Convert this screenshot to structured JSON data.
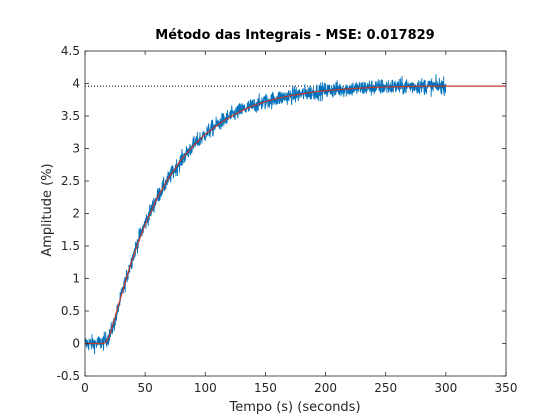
{
  "chart_data": {
    "type": "line",
    "title": "Método das Integrais - MSE: 0.017829",
    "xlabel": "Tempo (s) (seconds)",
    "ylabel": "Amplitude (%)",
    "xlim": [
      0,
      350
    ],
    "ylim": [
      -0.5,
      4.5
    ],
    "xticks": [
      "0",
      "50",
      "100",
      "150",
      "200",
      "250",
      "300",
      "350"
    ],
    "yticks": [
      "-0.5",
      "0",
      "0.5",
      "1",
      "1.5",
      "2",
      "2.5",
      "3",
      "3.5",
      "4",
      "4.5"
    ],
    "grid": false,
    "reference_line": {
      "y": 3.96,
      "style": "dotted",
      "color": "#000000"
    },
    "series": [
      {
        "style": "noisy-line",
        "color": "#0072BD",
        "x": [
          0,
          10,
          15,
          20,
          25,
          30,
          35,
          40,
          45,
          50,
          60,
          70,
          80,
          90,
          100,
          110,
          120,
          130,
          140,
          150,
          160,
          170,
          180,
          190,
          200,
          210,
          220,
          230,
          240,
          250,
          260,
          270,
          280,
          290,
          300
        ],
        "y": [
          0.0,
          0.0,
          0.02,
          0.1,
          0.35,
          0.72,
          1.05,
          1.35,
          1.62,
          1.85,
          2.25,
          2.55,
          2.82,
          3.05,
          3.22,
          3.37,
          3.49,
          3.59,
          3.66,
          3.72,
          3.77,
          3.81,
          3.84,
          3.87,
          3.89,
          3.91,
          3.92,
          3.93,
          3.94,
          3.95,
          3.95,
          3.96,
          3.96,
          3.96,
          3.97
        ],
        "noise_amplitude": 0.12
      },
      {
        "style": "line",
        "color": "#C0392B",
        "x": [
          0,
          15,
          18,
          20,
          22,
          25,
          30,
          35,
          40,
          45,
          50,
          60,
          70,
          80,
          90,
          100,
          110,
          120,
          130,
          140,
          150,
          160,
          170,
          180,
          190,
          200,
          220,
          240,
          260,
          280,
          300,
          320,
          340,
          350
        ],
        "y": [
          0.0,
          0.0,
          0.03,
          0.1,
          0.22,
          0.4,
          0.73,
          1.04,
          1.33,
          1.59,
          1.83,
          2.24,
          2.56,
          2.83,
          3.04,
          3.22,
          3.36,
          3.48,
          3.58,
          3.66,
          3.72,
          3.77,
          3.81,
          3.84,
          3.87,
          3.89,
          3.92,
          3.94,
          3.95,
          3.96,
          3.96,
          3.96,
          3.96,
          3.96
        ]
      }
    ]
  }
}
